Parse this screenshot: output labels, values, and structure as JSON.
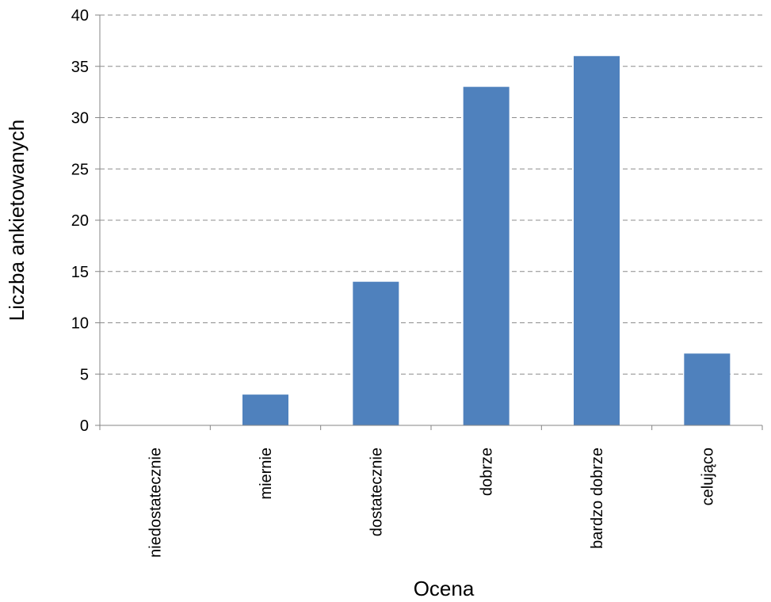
{
  "chart_data": {
    "type": "bar",
    "categories": [
      "niedostatecznie",
      "miernie",
      "dostatecznie",
      "dobrze",
      "bardzo dobrze",
      "celująco"
    ],
    "values": [
      0,
      3,
      14,
      33,
      36,
      7
    ],
    "title": "",
    "xlabel": "Ocena",
    "ylabel": "Liczba ankietowanych",
    "ylim": [
      0,
      40
    ],
    "yticks": [
      0,
      5,
      10,
      15,
      20,
      25,
      30,
      35,
      40
    ],
    "grid": true,
    "legend": "none",
    "colors": {
      "bar": "#4F81BD",
      "grid": "#8C8C8C",
      "axis": "#868686"
    }
  }
}
